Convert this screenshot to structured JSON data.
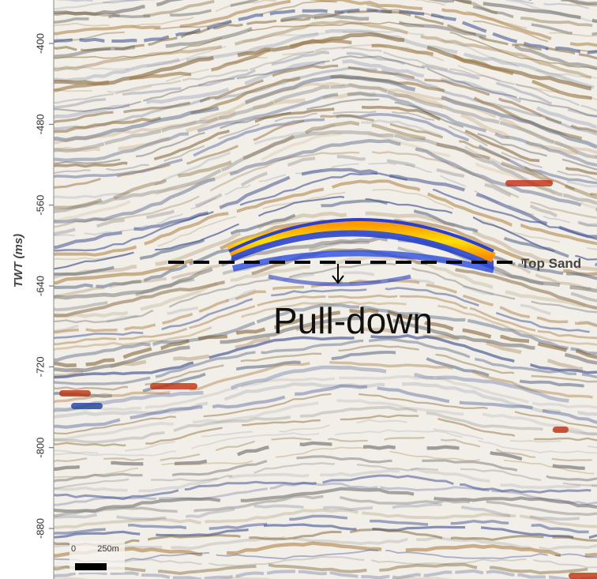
{
  "axis": {
    "label": "TWT (ms)",
    "ticks": [
      -400,
      -480,
      -560,
      -640,
      -720,
      -800,
      -880
    ],
    "ylim": [
      -357,
      -930
    ]
  },
  "annotations": {
    "horizon": "Top Sand",
    "effect": "Pull-down"
  },
  "scale_bar": {
    "start": "0",
    "end": "250m"
  }
}
